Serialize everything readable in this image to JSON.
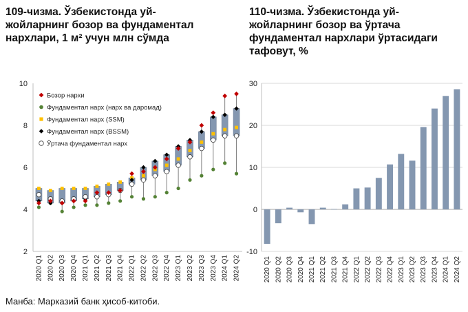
{
  "left_title": "109-чизма. Ўзбекистонда уй-\nжойларнинг бозор ва фундаментал\nнархлари, 1 м² учун млн сўмда",
  "right_title": "110-чизма. Ўзбекистонда уй-\nжойларнинг бозор ва ўртача\nфундаментал нархлари ўртасидаги\nтафовут, %",
  "source": "Манба: Марказий банк ҳисоб-китоби.",
  "colors": {
    "market": "#c00000",
    "income": "#548235",
    "ssm": "#ffc000",
    "bssm": "#000000",
    "avg_fill": "#ffffff",
    "box": "#8497b0",
    "bars": "#8497b0",
    "grid": "#d9d9d9"
  },
  "chart_data": [
    {
      "type": "box-dot",
      "title": "109-чизма. Ўзбекистонда уй-жойларнинг бозор ва фундаментал нархлари, 1 м² учун млн сўмда",
      "categories": [
        "2020 Q1",
        "2020 Q2",
        "2020 Q3",
        "2020 Q4",
        "2021 Q1",
        "2021 Q2",
        "2021 Q3",
        "2021 Q4",
        "2022 Q1",
        "2022 Q2",
        "2022 Q3",
        "2022 Q4",
        "2023 Q1",
        "2023 Q2",
        "2023 Q3",
        "2023 Q4",
        "2024 Q1",
        "2024 Q2"
      ],
      "ylim": [
        2,
        10
      ],
      "yticks": [
        2,
        4,
        6,
        8,
        10
      ],
      "legend": [
        "Бозор нархи",
        "Фундаментал нарх (нарх ва даромад)",
        "Фундаментал нарх (SSM)",
        "Фундаментал нарх (BSSM)",
        "Ўртача фундаментал нарх"
      ],
      "series": [
        {
          "name": "Бозор нархи",
          "values": [
            4.3,
            4.4,
            4.3,
            4.4,
            4.4,
            4.8,
            4.8,
            4.9,
            5.7,
            5.8,
            6.0,
            6.4,
            6.9,
            7.2,
            8.0,
            8.6,
            9.4,
            9.5
          ]
        },
        {
          "name": "Фундаментал нарх (нарх ва даромад)",
          "values": [
            4.1,
            4.3,
            3.9,
            4.1,
            4.2,
            4.2,
            4.3,
            4.4,
            4.6,
            4.5,
            4.6,
            4.8,
            5.0,
            5.4,
            5.6,
            5.9,
            6.2,
            5.7
          ]
        },
        {
          "name": "Фундаментал нарх (SSM)",
          "values": [
            5.0,
            4.9,
            5.0,
            5.0,
            5.0,
            5.1,
            5.2,
            5.3,
            5.5,
            5.6,
            5.9,
            6.1,
            6.4,
            6.8,
            7.2,
            7.6,
            7.8,
            7.9
          ]
        },
        {
          "name": "Фундаментал нарх (BSSM)",
          "values": [
            4.4,
            4.3,
            4.3,
            4.4,
            4.5,
            4.6,
            4.7,
            4.9,
            5.4,
            6.0,
            6.3,
            6.6,
            7.0,
            7.3,
            7.7,
            8.4,
            8.5,
            8.8
          ]
        },
        {
          "name": "Ўртача фундаментал нарх",
          "values": [
            4.7,
            4.5,
            4.4,
            4.5,
            4.6,
            4.6,
            4.7,
            4.9,
            5.2,
            5.4,
            5.6,
            5.8,
            6.1,
            6.5,
            6.9,
            7.3,
            7.5,
            7.5
          ]
        }
      ]
    },
    {
      "type": "bar",
      "title": "110-чизма. Ўзбекистонда уй-жойларнинг бозор ва ўртача фундаментал нархлари ўртасидаги тафовут, %",
      "categories": [
        "2020 Q1",
        "2020 Q2",
        "2020 Q3",
        "2020 Q4",
        "2021 Q1",
        "2021 Q2",
        "2021 Q3",
        "2021 Q4",
        "2022 Q1",
        "2022 Q2",
        "2022 Q3",
        "2022 Q4",
        "2023 Q1",
        "2023 Q2",
        "2023 Q3",
        "2023 Q4",
        "2024 Q1",
        "2024 Q2"
      ],
      "values": [
        -8.2,
        -3.3,
        0.4,
        -0.7,
        -3.5,
        0.4,
        0.1,
        1.2,
        5.0,
        5.2,
        7.5,
        10.7,
        13.2,
        11.6,
        19.6,
        24.0,
        27.0,
        28.6
      ],
      "ylim": [
        -10,
        30
      ],
      "yticks": [
        -10,
        0,
        10,
        20,
        30
      ]
    }
  ]
}
